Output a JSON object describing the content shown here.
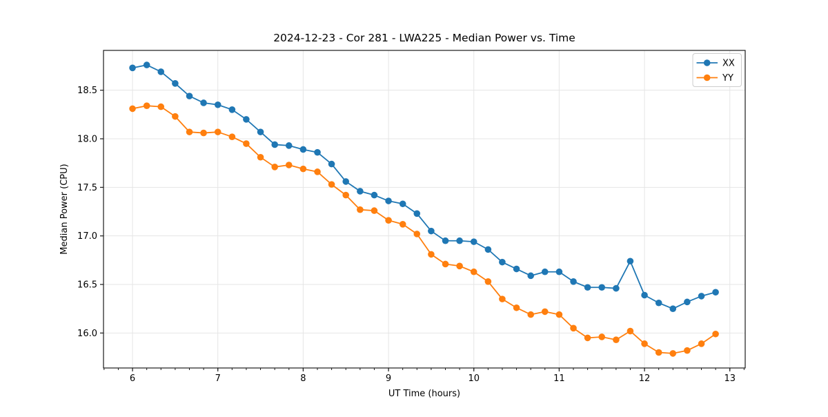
{
  "chart_data": {
    "type": "line",
    "title": "2024-12-23 - Cor 281 - LWA225 - Median Power vs. Time",
    "xlabel": "UT Time (hours)",
    "ylabel": "Median Power (CPU)",
    "xlim": [
      5.66,
      13.18
    ],
    "ylim": [
      15.64,
      18.91
    ],
    "x_ticks": [
      6,
      7,
      8,
      9,
      10,
      11,
      12,
      13
    ],
    "y_ticks": [
      16.0,
      16.5,
      17.0,
      17.5,
      18.0,
      18.5
    ],
    "x_minor_step": 0.166667,
    "grid": true,
    "grid_color": "#e5e5e5",
    "frame_color": "#1a1a1a",
    "legend_position": "upper right",
    "x": [
      6.0,
      6.167,
      6.333,
      6.5,
      6.667,
      6.833,
      7.0,
      7.167,
      7.333,
      7.5,
      7.667,
      7.833,
      8.0,
      8.167,
      8.333,
      8.5,
      8.667,
      8.833,
      9.0,
      9.167,
      9.333,
      9.5,
      9.667,
      9.833,
      10.0,
      10.167,
      10.333,
      10.5,
      10.667,
      10.833,
      11.0,
      11.167,
      11.333,
      11.5,
      11.667,
      11.833,
      12.0,
      12.167,
      12.333,
      12.5,
      12.667,
      12.833
    ],
    "series": [
      {
        "name": "XX",
        "color": "#1f77b4",
        "values": [
          18.73,
          18.76,
          18.69,
          18.57,
          18.44,
          18.37,
          18.35,
          18.3,
          18.2,
          18.07,
          17.94,
          17.93,
          17.89,
          17.86,
          17.74,
          17.56,
          17.46,
          17.42,
          17.36,
          17.33,
          17.23,
          17.05,
          16.95,
          16.95,
          16.94,
          16.86,
          16.73,
          16.66,
          16.59,
          16.63,
          16.63,
          16.53,
          16.47,
          16.47,
          16.46,
          16.74,
          16.39,
          16.31,
          16.25,
          16.32,
          16.38,
          16.42
        ]
      },
      {
        "name": "YY",
        "color": "#ff7f0e",
        "values": [
          18.31,
          18.34,
          18.33,
          18.23,
          18.07,
          18.06,
          18.07,
          18.02,
          17.95,
          17.81,
          17.71,
          17.73,
          17.69,
          17.66,
          17.53,
          17.42,
          17.27,
          17.26,
          17.16,
          17.12,
          17.02,
          16.81,
          16.71,
          16.69,
          16.63,
          16.53,
          16.35,
          16.26,
          16.19,
          16.22,
          16.19,
          16.05,
          15.95,
          15.96,
          15.93,
          16.02,
          15.89,
          15.8,
          15.79,
          15.82,
          15.89,
          15.99
        ]
      }
    ]
  }
}
